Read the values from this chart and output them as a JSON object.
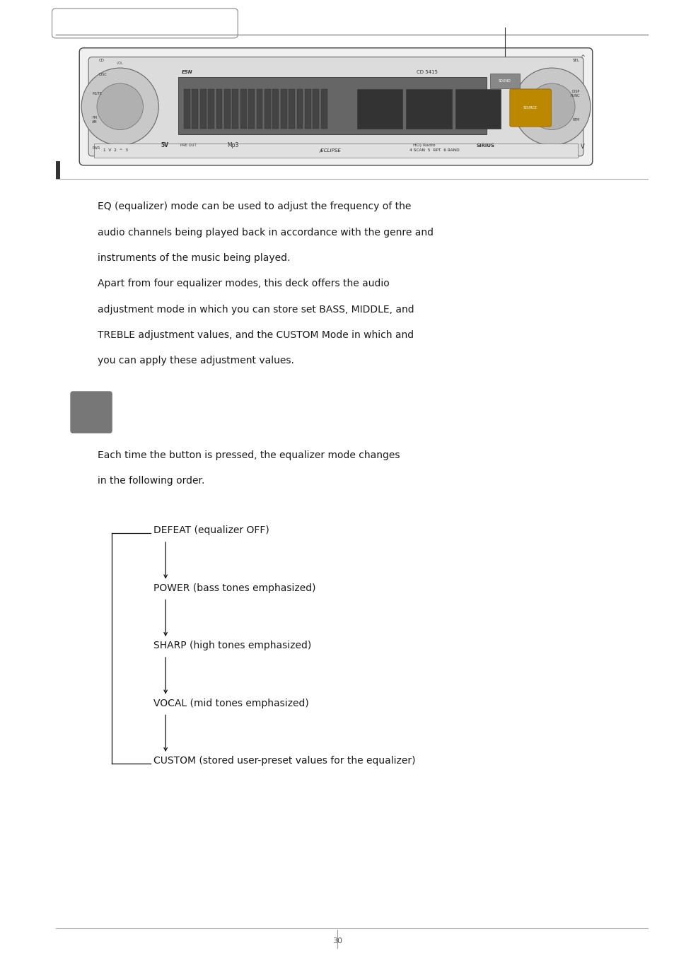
{
  "bg_color": "#ffffff",
  "text_color": "#1a1a1a",
  "page_width": 9.54,
  "page_height": 13.55,
  "para1_lines": [
    "EQ (equalizer) mode can be used to adjust the frequency of the",
    "audio channels being played back in accordance with the genre and",
    "instruments of the music being played."
  ],
  "para2_lines": [
    "Apart from four equalizer modes, this deck offers the audio",
    "adjustment mode in which you can store set BASS, MIDDLE, and",
    "TREBLE adjustment values, and the CUSTOM Mode in which and",
    "you can apply these adjustment values."
  ],
  "button_desc": [
    "Each time the button is pressed, the equalizer mode changes",
    "in the following order."
  ],
  "flow_items": [
    "DEFEAT (equalizer OFF)",
    "POWER (bass tones emphasized)",
    "SHARP (high tones emphasized)",
    "VOCAL (mid tones emphasized)",
    "CUSTOM (stored user-preset values for the equalizer)"
  ],
  "font_size_body": 10.0,
  "font_size_flow": 10.0
}
